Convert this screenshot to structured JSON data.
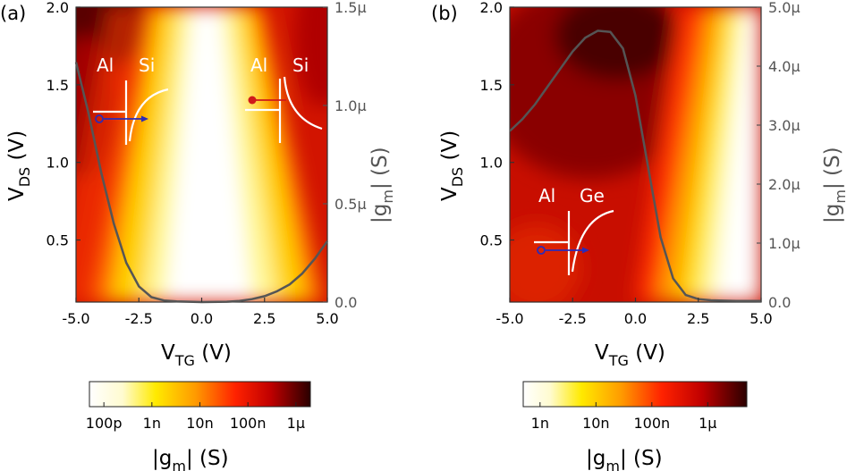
{
  "chart_data": [
    {
      "type": "heatmap",
      "panel_label": "(a)",
      "xlabel": {
        "main": "V",
        "sub": "TG",
        "unit": " (V)"
      },
      "ylabel": {
        "main": "V",
        "sub": "DS",
        "unit": " (V)"
      },
      "y2label": {
        "pre": "|g",
        "sub": "m",
        "post": "| (S)"
      },
      "xlim": [
        -5.0,
        5.0
      ],
      "ylim": [
        0.1,
        2.0
      ],
      "y2lim": [
        0.0,
        1.5
      ],
      "xticks": [
        {
          "value": -5.0,
          "label": "-5.0"
        },
        {
          "value": -2.5,
          "label": "-2.5"
        },
        {
          "value": 0.0,
          "label": "0.0"
        },
        {
          "value": 2.5,
          "label": "2.5"
        },
        {
          "value": 5.0,
          "label": "5.0"
        }
      ],
      "yticks": [
        {
          "value": 0.5,
          "label": "0.5"
        },
        {
          "value": 1.0,
          "label": "1.0"
        },
        {
          "value": 1.5,
          "label": "1.5"
        },
        {
          "value": 2.0,
          "label": "2.0"
        }
      ],
      "y2ticks": [
        {
          "value": 0.0,
          "label": "0.0"
        },
        {
          "value": 0.5,
          "label": "0.5μ"
        },
        {
          "value": 1.0,
          "label": "1.0μ"
        },
        {
          "value": 1.5,
          "label": "1.5μ"
        }
      ],
      "line": {
        "color": "#555555",
        "x": [
          -5.0,
          -4.5,
          -4.0,
          -3.5,
          -3.0,
          -2.5,
          -2.0,
          -1.5,
          -1.0,
          0.0,
          1.0,
          1.5,
          2.0,
          2.5,
          3.0,
          3.5,
          4.0,
          4.5,
          5.0
        ],
        "y": [
          1.22,
          0.96,
          0.66,
          0.4,
          0.2,
          0.08,
          0.025,
          0.008,
          0.003,
          0.0,
          0.002,
          0.006,
          0.015,
          0.03,
          0.055,
          0.09,
          0.145,
          0.22,
          0.31
        ]
      },
      "insets": [
        {
          "left": "Al",
          "right": "Si"
        },
        {
          "left": "Al",
          "right": "Si"
        }
      ],
      "colorbar": {
        "label": {
          "pre": "|g",
          "sub": "m",
          "post": "| (S)"
        },
        "scale": "log",
        "range": [
          5e-11,
          2e-06
        ],
        "ticks": [
          {
            "value": 1e-10,
            "label": "100p"
          },
          {
            "value": 1e-09,
            "label": "1n"
          },
          {
            "value": 1e-08,
            "label": "10n"
          },
          {
            "value": 1e-07,
            "label": "100n"
          },
          {
            "value": 1e-06,
            "label": "1μ"
          }
        ]
      }
    },
    {
      "type": "heatmap",
      "panel_label": "(b)",
      "xlabel": {
        "main": "V",
        "sub": "TG",
        "unit": " (V)"
      },
      "ylabel": {
        "main": "V",
        "sub": "DS",
        "unit": " (V)"
      },
      "y2label": {
        "pre": "|g",
        "sub": "m",
        "post": "| (S)"
      },
      "xlim": [
        -5.0,
        5.0
      ],
      "ylim": [
        0.1,
        2.0
      ],
      "y2lim": [
        0.0,
        5.0
      ],
      "xticks": [
        {
          "value": -5.0,
          "label": "-5.0"
        },
        {
          "value": -2.5,
          "label": "-2.5"
        },
        {
          "value": 0.0,
          "label": "0.0"
        },
        {
          "value": 2.5,
          "label": "2.5"
        },
        {
          "value": 5.0,
          "label": "5.0"
        }
      ],
      "yticks": [
        {
          "value": 0.5,
          "label": "0.5"
        },
        {
          "value": 1.0,
          "label": "1.0"
        },
        {
          "value": 1.5,
          "label": "1.5"
        },
        {
          "value": 2.0,
          "label": "2.0"
        }
      ],
      "y2ticks": [
        {
          "value": 0.0,
          "label": "0.0"
        },
        {
          "value": 1.0,
          "label": "1.0μ"
        },
        {
          "value": 2.0,
          "label": "2.0μ"
        },
        {
          "value": 3.0,
          "label": "3.0μ"
        },
        {
          "value": 4.0,
          "label": "4.0μ"
        },
        {
          "value": 5.0,
          "label": "5.0μ"
        }
      ],
      "line": {
        "color": "#555555",
        "x": [
          -5.0,
          -4.5,
          -4.0,
          -3.5,
          -3.0,
          -2.5,
          -2.0,
          -1.5,
          -1.0,
          -0.5,
          0.0,
          0.5,
          1.0,
          1.5,
          2.0,
          2.5,
          3.0,
          4.0,
          5.0
        ],
        "y": [
          2.9,
          3.1,
          3.35,
          3.65,
          3.95,
          4.25,
          4.48,
          4.6,
          4.58,
          4.3,
          3.5,
          2.3,
          1.1,
          0.4,
          0.12,
          0.05,
          0.03,
          0.02,
          0.02
        ]
      },
      "insets": [
        {
          "left": "Al",
          "right": "Ge"
        }
      ],
      "colorbar": {
        "label": {
          "pre": "|g",
          "sub": "m",
          "post": "| (S)"
        },
        "scale": "log",
        "range": [
          5e-10,
          5e-06
        ],
        "ticks": [
          {
            "value": 1e-09,
            "label": "1n"
          },
          {
            "value": 1e-08,
            "label": "10n"
          },
          {
            "value": 1e-07,
            "label": "100n"
          },
          {
            "value": 1e-06,
            "label": "1μ"
          }
        ]
      }
    }
  ]
}
